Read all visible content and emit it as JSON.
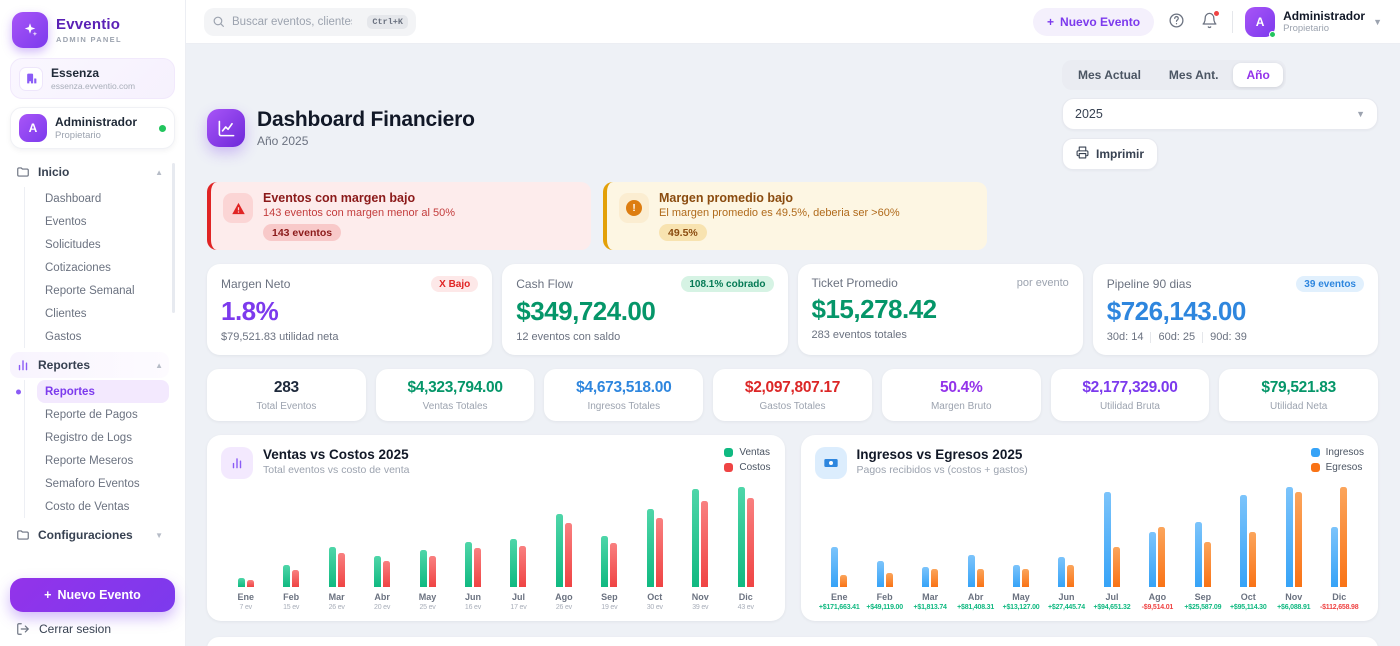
{
  "brand": {
    "name": "Evventio",
    "subtitle": "ADMIN PANEL",
    "logo_icon": "sparkles-icon",
    "accent_color": "#7c3aed"
  },
  "workspace": {
    "name": "Essenza",
    "domain": "essenza.evventio.com",
    "icon": "building-icon"
  },
  "user": {
    "name": "Administrador",
    "role": "Propietario",
    "avatar_initial": "A",
    "status": "online",
    "status_color": "#22c55e"
  },
  "topbar": {
    "search_placeholder": "Buscar eventos, clientes...",
    "search_shortcut": "Ctrl+K",
    "new_event_label": "Nuevo Evento",
    "icons": [
      "search-icon",
      "plus-icon",
      "help-circle-icon",
      "bell-icon",
      "chevron-down-icon"
    ],
    "notification_dot_color": "#ef4444"
  },
  "sidebar": {
    "sections": [
      {
        "label": "Inicio",
        "icon": "folder-icon",
        "expanded": true,
        "highlight": false,
        "items": [
          "Dashboard",
          "Eventos",
          "Solicitudes",
          "Cotizaciones",
          "Reporte Semanal",
          "Clientes",
          "Gastos"
        ]
      },
      {
        "label": "Reportes",
        "icon": "bar-chart-icon",
        "expanded": true,
        "highlight": true,
        "active_item": "Reportes",
        "items": [
          "Reportes",
          "Reporte de Pagos",
          "Registro de Logs",
          "Reporte Meseros",
          "Semaforo Eventos",
          "Costo de Ventas"
        ]
      },
      {
        "label": "Configuraciones",
        "icon": "folder-icon",
        "expanded": false,
        "items": []
      }
    ],
    "new_event_label": "Nuevo Evento",
    "logout_label": "Cerrar sesion",
    "logout_icon": "logout-icon"
  },
  "header": {
    "title": "Dashboard Financiero",
    "subtitle": "Año 2025",
    "title_icon": "line-chart-icon",
    "tabs": [
      "Mes Actual",
      "Mes Ant.",
      "Año"
    ],
    "active_tab": "Año",
    "year_select_value": "2025",
    "print_label": "Imprimir",
    "print_icon": "printer-icon"
  },
  "alerts": [
    {
      "severity": "danger",
      "icon": "warning-triangle-icon",
      "title": "Eventos con margen bajo",
      "description": "143 eventos con margen menor al 50%",
      "badge": "143 eventos",
      "accent_color": "#e02424"
    },
    {
      "severity": "warning",
      "icon": "exclamation-circle-icon",
      "title": "Margen promedio bajo",
      "description": "El margen promedio es 49.5%, deberia ser >60%",
      "badge": "49.5%",
      "accent_color": "#e3a008"
    }
  ],
  "kpi_cards": [
    {
      "title": "Margen Neto",
      "badge": "X Bajo",
      "badge_style": "danger",
      "value": "1.8%",
      "value_color": "purple",
      "subtitle_parts": [
        "$79,521.83 utilidad neta"
      ]
    },
    {
      "title": "Cash Flow",
      "badge": "108.1% cobrado",
      "badge_style": "success",
      "value": "$349,724.00",
      "value_color": "green",
      "subtitle_parts": [
        "12 eventos con saldo"
      ]
    },
    {
      "title": "Ticket Promedio",
      "badge": "por evento",
      "badge_style": "plain",
      "value": "$15,278.42",
      "value_color": "green",
      "subtitle_parts": [
        "283 eventos totales"
      ]
    },
    {
      "title": "Pipeline 90 dias",
      "badge": "39 eventos",
      "badge_style": "info",
      "value": "$726,143.00",
      "value_color": "blue",
      "subtitle_parts": [
        "30d: 14",
        "60d: 25",
        "90d: 39"
      ]
    }
  ],
  "mini_stats": [
    {
      "value": "283",
      "label": "Total Eventos",
      "color": "dark"
    },
    {
      "value": "$4,323,794.00",
      "label": "Ventas Totales",
      "color": "green"
    },
    {
      "value": "$4,673,518.00",
      "label": "Ingresos Totales",
      "color": "blue"
    },
    {
      "value": "$2,097,807.17",
      "label": "Gastos Totales",
      "color": "red"
    },
    {
      "value": "50.4%",
      "label": "Margen Bruto",
      "color": "violet"
    },
    {
      "value": "$2,177,329.00",
      "label": "Utilidad Bruta",
      "color": "purple"
    },
    {
      "value": "$79,521.83",
      "label": "Utilidad Neta",
      "color": "green"
    }
  ],
  "chart_data": [
    {
      "type": "bar",
      "title": "Ventas vs Costos 2025",
      "subtitle": "Total eventos vs costo de venta",
      "card_icon": "bar-chart-icon",
      "icon_theme": "purple",
      "legend_position": "top-right",
      "categories": [
        "Ene",
        "Feb",
        "Mar",
        "Abr",
        "May",
        "Jun",
        "Jul",
        "Ago",
        "Sep",
        "Oct",
        "Nov",
        "Dic"
      ],
      "x_sublabels": [
        "7 ev",
        "15 ev",
        "26 ev",
        "20 ev",
        "25 ev",
        "16 ev",
        "17 ev",
        "26 ev",
        "19 ev",
        "30 ev",
        "39 ev",
        "43 ev"
      ],
      "x_sublabel_tone": "muted",
      "events_per_month": [
        7,
        15,
        26,
        20,
        25,
        16,
        17,
        26,
        19,
        30,
        39,
        43
      ],
      "y_axis_shown": false,
      "series": [
        {
          "name": "Ventas",
          "color": "#10b981",
          "color_light": "#4fd6a9",
          "values_rel": [
            9,
            22,
            40,
            31,
            37,
            45,
            48,
            73,
            51,
            78,
            98,
            100
          ]
        },
        {
          "name": "Costos",
          "color": "#ef4444",
          "color_light": "#f98080",
          "values_rel": [
            7,
            17,
            34,
            26,
            31,
            39,
            41,
            64,
            44,
            69,
            86,
            89
          ]
        }
      ]
    },
    {
      "type": "bar",
      "title": "Ingresos vs Egresos 2025",
      "subtitle": "Pagos recibidos vs (costos + gastos)",
      "card_icon": "banknote-icon",
      "icon_theme": "blue",
      "legend_position": "top-right",
      "categories": [
        "Ene",
        "Feb",
        "Mar",
        "Abr",
        "May",
        "Jun",
        "Jul",
        "Ago",
        "Sep",
        "Oct",
        "Nov",
        "Dic"
      ],
      "x_sublabels": [
        "+$171,663.41",
        "+$49,119.00",
        "+$1,813.74",
        "+$81,408.31",
        "+$13,127.00",
        "+$27,445.74",
        "+$94,651.32",
        "-$9,514.01",
        "+$25,587.09",
        "+$95,114.30",
        "+$6,088.91",
        "-$112,658.98"
      ],
      "x_sublabel_tone": "signed",
      "net_per_month": [
        171663.41,
        49119.0,
        1813.74,
        81408.31,
        13127.0,
        27445.74,
        94651.32,
        -9514.01,
        25587.09,
        95114.3,
        6088.91,
        -112658.98
      ],
      "y_axis_shown": false,
      "series": [
        {
          "name": "Ingresos",
          "color": "#36a3f7",
          "color_light": "#7cc4fb",
          "values_rel": [
            40,
            26,
            20,
            32,
            22,
            30,
            95,
            55,
            65,
            92,
            100,
            60
          ]
        },
        {
          "name": "Egresos",
          "color": "#f97316",
          "color_light": "#fba55c",
          "values_rel": [
            12,
            14,
            18,
            18,
            18,
            22,
            40,
            60,
            45,
            55,
            95,
            100
          ]
        }
      ]
    }
  ]
}
